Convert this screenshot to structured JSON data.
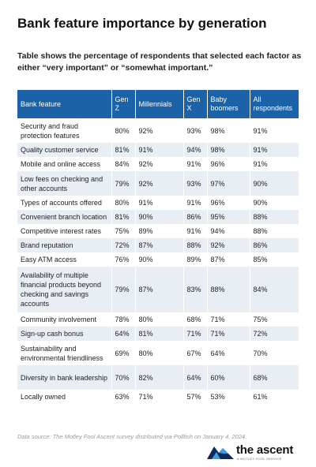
{
  "title": "Bank feature importance by generation",
  "subtitle": "Table shows the percentage of respondents that selected each factor as either “very important” or “somewhat important.”",
  "chart_data": {
    "type": "table",
    "columns": [
      "Bank feature",
      "Gen Z",
      "Millennials",
      "Gen X",
      "Baby boomers",
      "All respondents"
    ],
    "rows": [
      [
        "Security and fraud protection features",
        "80%",
        "92%",
        "93%",
        "98%",
        "91%"
      ],
      [
        "Quality customer service",
        "81%",
        "91%",
        "94%",
        "98%",
        "91%"
      ],
      [
        "Mobile and online access",
        "84%",
        "92%",
        "91%",
        "96%",
        "91%"
      ],
      [
        "Low fees on checking and other accounts",
        "79%",
        "92%",
        "93%",
        "97%",
        "90%"
      ],
      [
        "Types of accounts offered",
        "80%",
        "91%",
        "91%",
        "96%",
        "90%"
      ],
      [
        "Convenient branch location",
        "81%",
        "90%",
        "86%",
        "95%",
        "88%"
      ],
      [
        "Competitive interest rates",
        "75%",
        "89%",
        "91%",
        "94%",
        "88%"
      ],
      [
        "Brand reputation",
        "72%",
        "87%",
        "88%",
        "92%",
        "86%"
      ],
      [
        "Easy ATM access",
        "76%",
        "90%",
        "89%",
        "87%",
        "85%"
      ],
      [
        "Availability of multiple financial products beyond checking and savings accounts",
        "79%",
        "87%",
        "83%",
        "88%",
        "84%"
      ],
      [
        "Community involvement",
        "78%",
        "80%",
        "68%",
        "71%",
        "75%"
      ],
      [
        "Sign-up cash bonus",
        "64%",
        "81%",
        "71%",
        "71%",
        "72%"
      ],
      [
        "Sustainability and environmental friendliness",
        "69%",
        "80%",
        "67%",
        "64%",
        "70%"
      ],
      [
        "Diversity in bank leadership",
        "70%",
        "82%",
        "64%",
        "60%",
        "68%"
      ],
      [
        "Locally owned",
        "63%",
        "71%",
        "57%",
        "53%",
        "61%"
      ]
    ]
  },
  "source": "Data source: The Motley Fool Ascent survey distributed via Pollfish on January 4, 2024.",
  "logo": {
    "text": "the ascent",
    "tagline": "A MOTLEY FOOL SERVICE",
    "icon": "mountain-logo-icon"
  },
  "colors": {
    "header_bg": "#1c62a8",
    "stripe_bg": "#e9eef5",
    "logo_dark": "#0d2a5c",
    "logo_light": "#3fa0e0"
  }
}
